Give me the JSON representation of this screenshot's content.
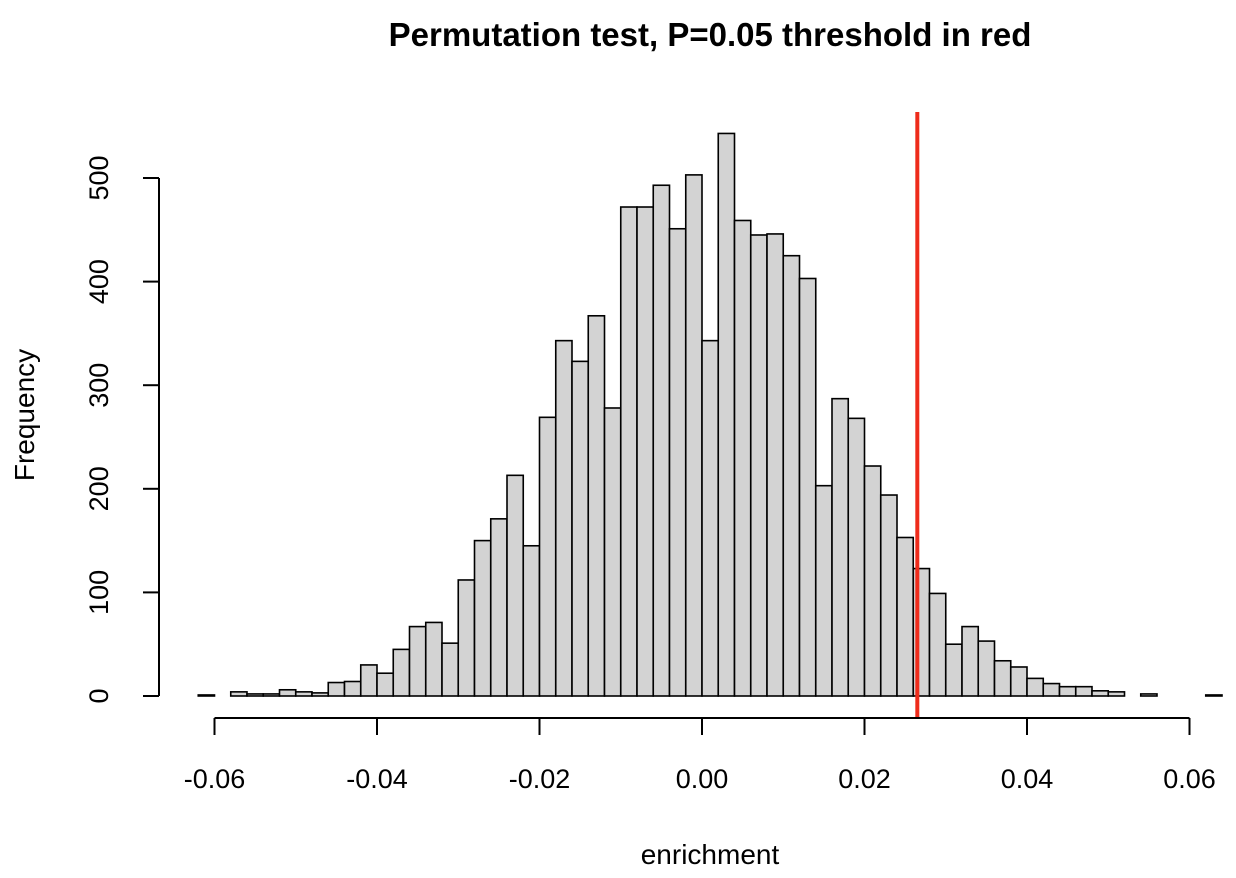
{
  "chart_data": {
    "type": "bar",
    "title": "Permutation test, P=0.05 threshold in red",
    "xlabel": "enrichment",
    "ylabel": "Frequency",
    "xlim": [
      -0.06,
      0.06
    ],
    "ylim": [
      0,
      500
    ],
    "x_ticks": [
      -0.06,
      -0.04,
      -0.02,
      0.0,
      0.02,
      0.04,
      0.06
    ],
    "x_tick_labels": [
      "-0.06",
      "-0.04",
      "-0.02",
      "0.00",
      "0.02",
      "0.04",
      "0.06"
    ],
    "y_ticks": [
      0,
      100,
      200,
      300,
      400,
      500
    ],
    "y_tick_labels": [
      "0",
      "100",
      "200",
      "300",
      "400",
      "500"
    ],
    "bin_width": 0.002,
    "bin_start": -0.062,
    "values": [
      1,
      0,
      4,
      2,
      2,
      6,
      4,
      3,
      13,
      14,
      30,
      22,
      45,
      67,
      71,
      51,
      112,
      150,
      171,
      213,
      145,
      269,
      343,
      323,
      367,
      278,
      472,
      472,
      493,
      451,
      503,
      343,
      543,
      459,
      445,
      446,
      425,
      403,
      203,
      287,
      268,
      222,
      194,
      153,
      123,
      99,
      50,
      67,
      53,
      34,
      28,
      17,
      12,
      9,
      9,
      5,
      4,
      0,
      2,
      0,
      0,
      0,
      1
    ],
    "threshold": 0.0265,
    "threshold_color": "#ee2c1b",
    "bar_color": "#d3d3d3",
    "grid": false
  }
}
